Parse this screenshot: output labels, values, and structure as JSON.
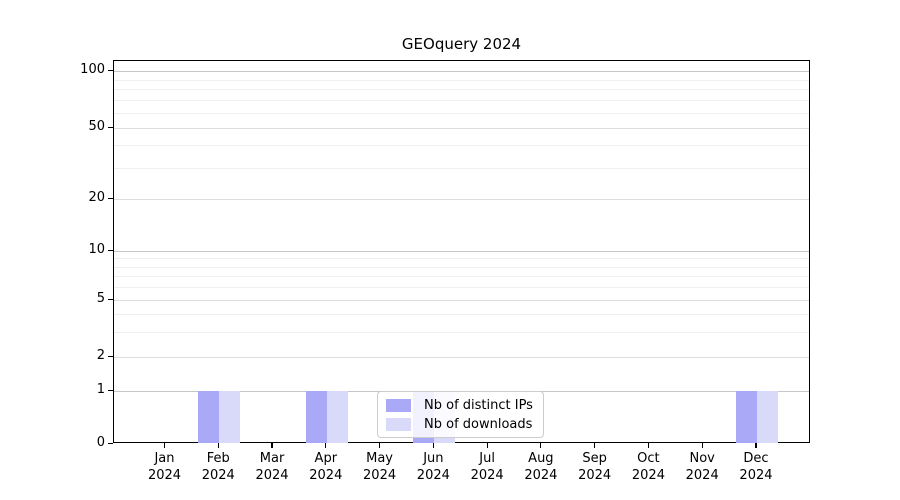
{
  "figure": {
    "title": "GEOquery 2024"
  },
  "chart_data": {
    "type": "bar",
    "title": "GEOquery 2024",
    "categories": [
      "Jan 2024",
      "Feb 2024",
      "Mar 2024",
      "Apr 2024",
      "May 2024",
      "Jun 2024",
      "Jul 2024",
      "Aug 2024",
      "Sep 2024",
      "Oct 2024",
      "Nov 2024",
      "Dec 2024"
    ],
    "x_tick_months": [
      "Jan",
      "Feb",
      "Mar",
      "Apr",
      "May",
      "Jun",
      "Jul",
      "Aug",
      "Sep",
      "Oct",
      "Nov",
      "Dec"
    ],
    "x_tick_year": "2024",
    "series": [
      {
        "name": "Nb of distinct IPs",
        "color": "#a9a9f7",
        "values": [
          0,
          1,
          0,
          1,
          0,
          1,
          0,
          0,
          0,
          0,
          0,
          1
        ]
      },
      {
        "name": "Nb of downloads",
        "color": "#d9d9fa",
        "values": [
          0,
          1,
          0,
          1,
          0,
          1,
          0,
          0,
          0,
          0,
          0,
          1
        ]
      }
    ],
    "ylabel": "",
    "xlabel": "",
    "yscale": "log125-with-zero-baseline",
    "y_major_ticks": [
      0,
      1,
      2,
      5,
      10,
      20,
      50,
      100
    ],
    "y_minor_ticks": [
      3,
      4,
      6,
      7,
      8,
      9,
      30,
      40,
      60,
      70,
      80,
      90
    ],
    "ylim": [
      0,
      110
    ],
    "grid": "horizontal",
    "legend_position": "lower center inside plot"
  },
  "legend": {
    "items": [
      {
        "label": "Nb of distinct IPs",
        "color": "#a9a9f7"
      },
      {
        "label": "Nb of downloads",
        "color": "#d9d9fa"
      }
    ]
  },
  "colors": {
    "bar_distinct_ips": "#a9a9f7",
    "bar_downloads": "#d9d9fa",
    "grid_decade": "#c6c6c6",
    "grid_major": "#dddddd",
    "grid_minor": "#efefef",
    "axis": "#000000",
    "legend_border": "#cccccc",
    "background": "#ffffff"
  }
}
